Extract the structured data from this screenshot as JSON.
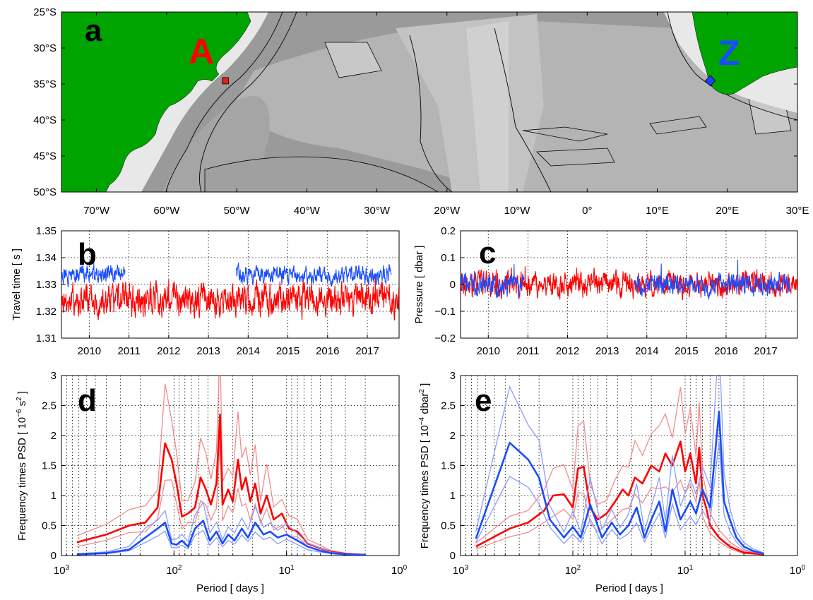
{
  "colors": {
    "land": "#00a400",
    "red": "#ff0000",
    "blue": "#1a4dff",
    "red_light": "#f08c8c",
    "blue_light": "#8a9cff",
    "site_A": "#e02020",
    "site_Z": "#2040ff",
    "ocean_shelf": "#e8e8e8",
    "ocean_deep": "#8e8e8e"
  },
  "panels": {
    "a": {
      "label": "a"
    },
    "b": {
      "label": "b"
    },
    "c": {
      "label": "c"
    },
    "d": {
      "label": "d"
    },
    "e": {
      "label": "e"
    }
  },
  "chart_data": [
    {
      "id": "a",
      "type": "map",
      "title": "",
      "lon_ticks": [
        "70°W",
        "60°W",
        "50°W",
        "40°W",
        "30°W",
        "20°W",
        "10°W",
        "0°",
        "10°E",
        "20°E",
        "30°E"
      ],
      "lat_ticks": [
        "25°S",
        "30°S",
        "35°S",
        "40°S",
        "45°S",
        "50°S"
      ],
      "xlim": [
        -75,
        30
      ],
      "ylim": [
        -50,
        -25
      ],
      "sites": [
        {
          "name": "A",
          "lon": -51.5,
          "lat": -34.5,
          "marker": "square",
          "color": "#e02020"
        },
        {
          "name": "Z",
          "lon": 17.5,
          "lat": -34.3,
          "marker": "diamond",
          "color": "#2040ff"
        }
      ]
    },
    {
      "id": "b",
      "type": "line",
      "ylabel": "Travel time [ s ]",
      "xlabel": "",
      "x_ticks": [
        "2010",
        "2011",
        "2012",
        "2013",
        "2014",
        "2015",
        "2016",
        "2017"
      ],
      "y_ticks": [
        "1.31",
        "1.32",
        "1.33",
        "1.34",
        "1.35"
      ],
      "xlim": [
        2009.3,
        2017.8
      ],
      "ylim": [
        1.31,
        1.35
      ],
      "grid": true,
      "series": [
        {
          "color": "#ff0000",
          "segments": [
            [
              2009.3,
              2017.8
            ]
          ],
          "mean": 1.3245,
          "amp": 0.0045
        },
        {
          "color": "#1a4dff",
          "segments": [
            [
              2009.3,
              2010.9
            ],
            [
              2013.7,
              2017.6
            ]
          ],
          "mean": 1.3335,
          "amp": 0.0025
        }
      ]
    },
    {
      "id": "c",
      "type": "line",
      "ylabel": "Pressure [ dbar ]",
      "xlabel": "",
      "x_ticks": [
        "2010",
        "2011",
        "2012",
        "2013",
        "2014",
        "2015",
        "2016",
        "2017"
      ],
      "y_ticks": [
        "−0.2",
        "−0.1",
        "0",
        "0.1",
        "0.2"
      ],
      "xlim": [
        2009.3,
        2017.8
      ],
      "ylim": [
        -0.2,
        0.2
      ],
      "grid": true,
      "series": [
        {
          "color": "#ff0000",
          "segments": [
            [
              2009.3,
              2017.8
            ]
          ],
          "mean": 0.0,
          "amp": 0.035
        },
        {
          "color": "#1a4dff",
          "segments": [
            [
              2009.3,
              2010.9
            ],
            [
              2013.7,
              2017.6
            ]
          ],
          "mean": 0.0,
          "amp": 0.03
        }
      ]
    },
    {
      "id": "d",
      "type": "line",
      "xscale": "log",
      "xdir": "reverse",
      "xlabel": "Period [ days ]",
      "ylabel_main": "Frequency times PSD [ 10",
      "ylabel_exp": "−6",
      "ylabel_unit": " s",
      "ylabel_unit_exp": "2",
      "ylabel_end": " ]",
      "x_ticks": [
        {
          "base": "10",
          "exp": "3"
        },
        {
          "base": "10",
          "exp": "2"
        },
        {
          "base": "10",
          "exp": "1"
        },
        {
          "base": "10",
          "exp": "0"
        }
      ],
      "y_ticks": [
        "0",
        "0.5",
        "1",
        "1.5",
        "2",
        "2.5",
        "3"
      ],
      "xlim": [
        1000,
        1
      ],
      "ylim": [
        0,
        3
      ],
      "grid": true,
      "series": [
        {
          "color": "#ff0000",
          "role": "estimate",
          "points": [
            [
              730,
              0.22
            ],
            [
              400,
              0.35
            ],
            [
              250,
              0.5
            ],
            [
              180,
              0.55
            ],
            [
              140,
              0.8
            ],
            [
              120,
              1.87
            ],
            [
              105,
              1.6
            ],
            [
              95,
              1.2
            ],
            [
              85,
              0.65
            ],
            [
              75,
              0.7
            ],
            [
              65,
              0.8
            ],
            [
              58,
              1.3
            ],
            [
              52,
              1.1
            ],
            [
              47,
              0.85
            ],
            [
              42,
              1.2
            ],
            [
              39,
              2.35
            ],
            [
              37,
              0.85
            ],
            [
              33,
              1.1
            ],
            [
              30,
              0.9
            ],
            [
              27,
              1.6
            ],
            [
              25,
              1.1
            ],
            [
              23,
              1.3
            ],
            [
              21,
              0.9
            ],
            [
              19,
              1.2
            ],
            [
              17,
              0.7
            ],
            [
              15,
              1.0
            ],
            [
              13,
              0.6
            ],
            [
              11,
              0.7
            ],
            [
              9.5,
              0.45
            ],
            [
              8,
              0.4
            ],
            [
              6.5,
              0.2
            ],
            [
              5,
              0.12
            ],
            [
              4,
              0.06
            ],
            [
              3,
              0.03
            ],
            [
              2,
              0.01
            ]
          ]
        },
        {
          "color": "#1a4dff",
          "role": "estimate",
          "points": [
            [
              730,
              0.02
            ],
            [
              400,
              0.04
            ],
            [
              250,
              0.1
            ],
            [
              180,
              0.3
            ],
            [
              140,
              0.45
            ],
            [
              120,
              0.55
            ],
            [
              105,
              0.2
            ],
            [
              95,
              0.18
            ],
            [
              85,
              0.25
            ],
            [
              75,
              0.15
            ],
            [
              65,
              0.45
            ],
            [
              55,
              0.58
            ],
            [
              48,
              0.25
            ],
            [
              42,
              0.4
            ],
            [
              37,
              0.2
            ],
            [
              33,
              0.35
            ],
            [
              29,
              0.25
            ],
            [
              25,
              0.45
            ],
            [
              22,
              0.3
            ],
            [
              19,
              0.55
            ],
            [
              16,
              0.35
            ],
            [
              14,
              0.4
            ],
            [
              12,
              0.3
            ],
            [
              10,
              0.35
            ],
            [
              8,
              0.25
            ],
            [
              6.5,
              0.15
            ],
            [
              5,
              0.08
            ],
            [
              4,
              0.04
            ],
            [
              3,
              0.02
            ],
            [
              2,
              0.01
            ]
          ]
        }
      ]
    },
    {
      "id": "e",
      "type": "line",
      "xscale": "log",
      "xdir": "reverse",
      "xlabel": "Period [ days ]",
      "ylabel_main": "Frequency times PSD [ 10",
      "ylabel_exp": "−4",
      "ylabel_unit": " dbar",
      "ylabel_unit_exp": "2",
      "ylabel_end": " ]",
      "x_ticks": [
        {
          "base": "10",
          "exp": "3"
        },
        {
          "base": "10",
          "exp": "2"
        },
        {
          "base": "10",
          "exp": "1"
        },
        {
          "base": "10",
          "exp": "0"
        }
      ],
      "y_ticks": [
        "0",
        "0.5",
        "1",
        "1.5",
        "2",
        "2.5",
        "3"
      ],
      "xlim": [
        1000,
        1
      ],
      "ylim": [
        0,
        3
      ],
      "grid": true,
      "series": [
        {
          "color": "#ff0000",
          "role": "estimate",
          "points": [
            [
              730,
              0.15
            ],
            [
              365,
              0.45
            ],
            [
              250,
              0.55
            ],
            [
              180,
              0.75
            ],
            [
              150,
              1.0
            ],
            [
              120,
              1.02
            ],
            [
              100,
              0.8
            ],
            [
              90,
              1.45
            ],
            [
              80,
              1.48
            ],
            [
              70,
              0.8
            ],
            [
              60,
              0.6
            ],
            [
              50,
              0.7
            ],
            [
              42,
              0.9
            ],
            [
              36,
              1.1
            ],
            [
              32,
              1.0
            ],
            [
              28,
              1.3
            ],
            [
              24,
              1.2
            ],
            [
              20,
              1.5
            ],
            [
              17,
              1.4
            ],
            [
              15,
              1.7
            ],
            [
              13,
              1.5
            ],
            [
              11,
              1.9
            ],
            [
              10,
              1.4
            ],
            [
              9,
              1.7
            ],
            [
              8,
              1.2
            ],
            [
              7.5,
              1.8
            ],
            [
              7,
              1.0
            ],
            [
              6.5,
              0.8
            ],
            [
              6,
              0.5
            ],
            [
              5,
              0.3
            ],
            [
              4,
              0.15
            ],
            [
              3,
              0.05
            ],
            [
              2,
              0.02
            ]
          ]
        },
        {
          "color": "#1a4dff",
          "role": "estimate",
          "points": [
            [
              730,
              0.28
            ],
            [
              365,
              1.88
            ],
            [
              250,
              1.6
            ],
            [
              200,
              1.3
            ],
            [
              160,
              0.6
            ],
            [
              120,
              0.3
            ],
            [
              100,
              0.48
            ],
            [
              85,
              0.3
            ],
            [
              70,
              0.85
            ],
            [
              55,
              0.3
            ],
            [
              45,
              0.55
            ],
            [
              38,
              0.35
            ],
            [
              32,
              0.5
            ],
            [
              27,
              0.8
            ],
            [
              23,
              0.3
            ],
            [
              20,
              0.6
            ],
            [
              17,
              0.9
            ],
            [
              15,
              0.4
            ],
            [
              13,
              1.1
            ],
            [
              11,
              0.6
            ],
            [
              9,
              0.9
            ],
            [
              8,
              0.7
            ],
            [
              7,
              1.1
            ],
            [
              6,
              0.8
            ],
            [
              5,
              2.4
            ],
            [
              4.5,
              0.9
            ],
            [
              4,
              0.6
            ],
            [
              3.5,
              0.3
            ],
            [
              3,
              0.15
            ],
            [
              2.5,
              0.08
            ],
            [
              2,
              0.03
            ]
          ]
        }
      ]
    }
  ]
}
